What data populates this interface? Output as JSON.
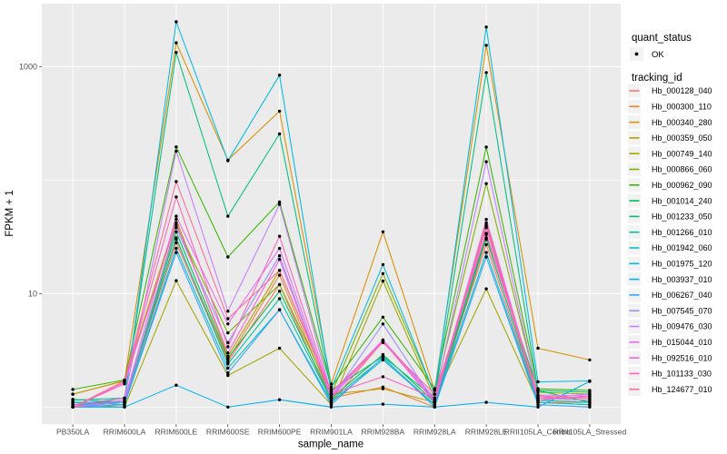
{
  "axes": {
    "x_label": "sample_name",
    "y_label": "FPKM + 1",
    "y_tick_labels": [
      "10",
      "1000"
    ]
  },
  "legend": {
    "quant_status_title": "quant_status",
    "quant_status_items": [
      {
        "label": "OK"
      }
    ],
    "tracking_title": "tracking_id"
  },
  "colors": {
    "background": "#FFFFFF",
    "panel": "#EBEBEB",
    "grid": "#FFFFFF",
    "tick_text": "#4D4D4D",
    "tick_mark": "#333333",
    "axis_title": "#000000",
    "legend_key_bg": "#F2F2F2",
    "point": "#000000"
  },
  "chart_data": {
    "type": "line",
    "title": "",
    "xlabel": "sample_name",
    "ylabel": "FPKM + 1",
    "y_scale": "log10",
    "ylim": [
      1,
      3500
    ],
    "y_major_ticks": [
      10,
      1000
    ],
    "y_minor_ticks": [
      1,
      100
    ],
    "grid": true,
    "legend_position": "right",
    "point_legend": {
      "title": "quant_status",
      "items": [
        "OK"
      ]
    },
    "categories": [
      "PB350LA",
      "RRIM600LA",
      "RRIM600LE",
      "RRIM600SE",
      "RRIM600PE",
      "RRIM901LA",
      "RRIM928BA",
      "RRIM928LA",
      "RRIM928LE",
      "RRII105LA_Control",
      "RRII105LA_Stressed"
    ],
    "series": [
      {
        "name": "Hb_000128_040",
        "color": "#F8766D",
        "values": [
          1.0,
          1.1,
          28,
          2.5,
          12,
          1.1,
          3.8,
          1.1,
          27,
          1.1,
          1.1
        ]
      },
      {
        "name": "Hb_000300_110",
        "color": "#EA8331",
        "values": [
          1.0,
          1.2,
          30,
          2.6,
          14.5,
          1.2,
          1.5,
          1.0,
          30,
          1.2,
          1.15
        ]
      },
      {
        "name": "Hb_000340_280",
        "color": "#D89000",
        "values": [
          1.3,
          1.7,
          1620,
          150,
          405,
          1.6,
          35,
          1.4,
          1540,
          3.3,
          2.6
        ]
      },
      {
        "name": "Hb_000359_050",
        "color": "#C09B00",
        "values": [
          1.3,
          1.7,
          45,
          2.8,
          16,
          1.3,
          1.45,
          1.1,
          42,
          1.25,
          1.2
        ]
      },
      {
        "name": "Hb_000749_140",
        "color": "#A3A500",
        "values": [
          1.05,
          1.0,
          13,
          1.9,
          3.3,
          1.05,
          12.9,
          1.2,
          11,
          1.1,
          1.05
        ]
      },
      {
        "name": "Hb_000866_060",
        "color": "#7CAE00",
        "values": [
          1.1,
          1.1,
          40,
          4.5,
          12,
          1.3,
          15,
          1.3,
          93,
          1.35,
          1.3
        ]
      },
      {
        "name": "Hb_000962_090",
        "color": "#39B600",
        "values": [
          1.43,
          1.73,
          196,
          21,
          64,
          1.5,
          6.2,
          1.45,
          195,
          1.45,
          1.4
        ]
      },
      {
        "name": "Hb_001014_240",
        "color": "#00BB4E",
        "values": [
          1.1,
          1.1,
          35,
          2.7,
          10.5,
          1.2,
          2.9,
          1.1,
          33,
          1.4,
          1.1
        ]
      },
      {
        "name": "Hb_001233_050",
        "color": "#00BF7D",
        "values": [
          1.15,
          1.2,
          1330,
          48,
          255,
          1.4,
          2.8,
          1.2,
          885,
          1.4,
          1.35
        ]
      },
      {
        "name": "Hb_001266_010",
        "color": "#00C1A3",
        "values": [
          1.17,
          1.1,
          31,
          2.4,
          9,
          1.15,
          2.7,
          1.05,
          31,
          1.15,
          1.1
        ]
      },
      {
        "name": "Hb_001942_060",
        "color": "#00BFC4",
        "values": [
          1.1,
          1.05,
          25,
          2.2,
          7.2,
          1.1,
          2.6,
          1.05,
          23,
          1.1,
          1.05
        ]
      },
      {
        "name": "Hb_001975_120",
        "color": "#00BAE0",
        "values": [
          1.05,
          1.1,
          2480,
          148,
          840,
          1.45,
          18,
          1.3,
          2230,
          1.67,
          1.7
        ]
      },
      {
        "name": "Hb_003937_010",
        "color": "#00B0F6",
        "values": [
          1.0,
          1.0,
          1.56,
          1.0,
          1.16,
          1.0,
          1.06,
          1.0,
          1.1,
          1.0,
          1.68
        ]
      },
      {
        "name": "Hb_006267_040",
        "color": "#35A2FF",
        "values": [
          1.0,
          1.05,
          23,
          2.0,
          7.2,
          1.05,
          2.75,
          1.0,
          21,
          1.05,
          1.0
        ]
      },
      {
        "name": "Hb_007545_070",
        "color": "#9590FF",
        "values": [
          1.0,
          1.1,
          38,
          3.7,
          21.5,
          1.2,
          5.4,
          1.1,
          39,
          1.2,
          1.15
        ]
      },
      {
        "name": "Hb_009476_030",
        "color": "#C77CFF",
        "values": [
          1.05,
          1.2,
          180,
          7.0,
          61,
          1.3,
          3.9,
          1.2,
          145,
          1.28,
          1.25
        ]
      },
      {
        "name": "Hb_015044_010",
        "color": "#E76BF3",
        "values": [
          1.0,
          1.15,
          48,
          5.4,
          25,
          1.25,
          3.9,
          1.15,
          45,
          1.2,
          1.3
        ]
      },
      {
        "name": "Hb_092516_010",
        "color": "#FA62DB",
        "values": [
          1.0,
          1.6,
          42,
          3.0,
          20,
          1.2,
          3.8,
          1.1,
          38,
          1.15,
          1.25
        ]
      },
      {
        "name": "Hb_101133_030",
        "color": "#FF62BC",
        "values": [
          1.0,
          1.65,
          71,
          3.4,
          32,
          1.3,
          1.85,
          1.2,
          40,
          1.2,
          1.2
        ]
      },
      {
        "name": "Hb_124677_010",
        "color": "#FF6A98",
        "values": [
          1.0,
          1.7,
          97,
          6.0,
          16,
          1.35,
          3.7,
          1.3,
          34,
          1.25,
          1.2
        ]
      }
    ]
  }
}
